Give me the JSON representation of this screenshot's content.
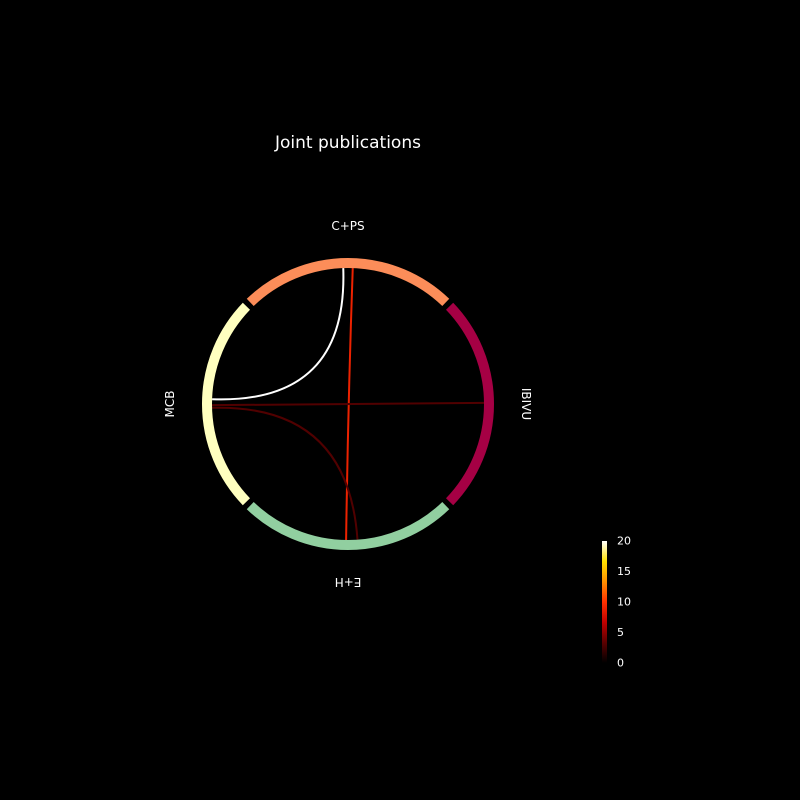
{
  "title": "Joint publications",
  "nodes": [
    {
      "id": "C+PS",
      "label": "C+PS",
      "color": "#fc8d59",
      "angle_start": 45,
      "angle_end": 135
    },
    {
      "id": "MCB",
      "label": "MCB",
      "color": "#ffffbf",
      "angle_start": 135,
      "angle_end": 225
    },
    {
      "id": "E+H",
      "label": "E+H",
      "color": "#91cfa0",
      "angle_start": 225,
      "angle_end": 315
    },
    {
      "id": "IBIVU",
      "label": "IBIVU",
      "color": "#a50044",
      "angle_start": 315,
      "angle_end": 405
    }
  ],
  "links": [
    {
      "source": "C+PS",
      "target": "MCB",
      "value": 20
    },
    {
      "source": "C+PS",
      "target": "E+H",
      "value": 9
    },
    {
      "source": "MCB",
      "target": "IBIVU",
      "value": 3
    },
    {
      "source": "MCB",
      "target": "E+H",
      "value": 3
    }
  ],
  "colorbar": {
    "min": 0,
    "max": 20,
    "ticks": [
      "0",
      "5",
      "10",
      "15",
      "20"
    ],
    "colormap": [
      "#000000",
      "#5a0000",
      "#c00000",
      "#ff3000",
      "#ff9000",
      "#ffe000",
      "#ffffff"
    ]
  }
}
